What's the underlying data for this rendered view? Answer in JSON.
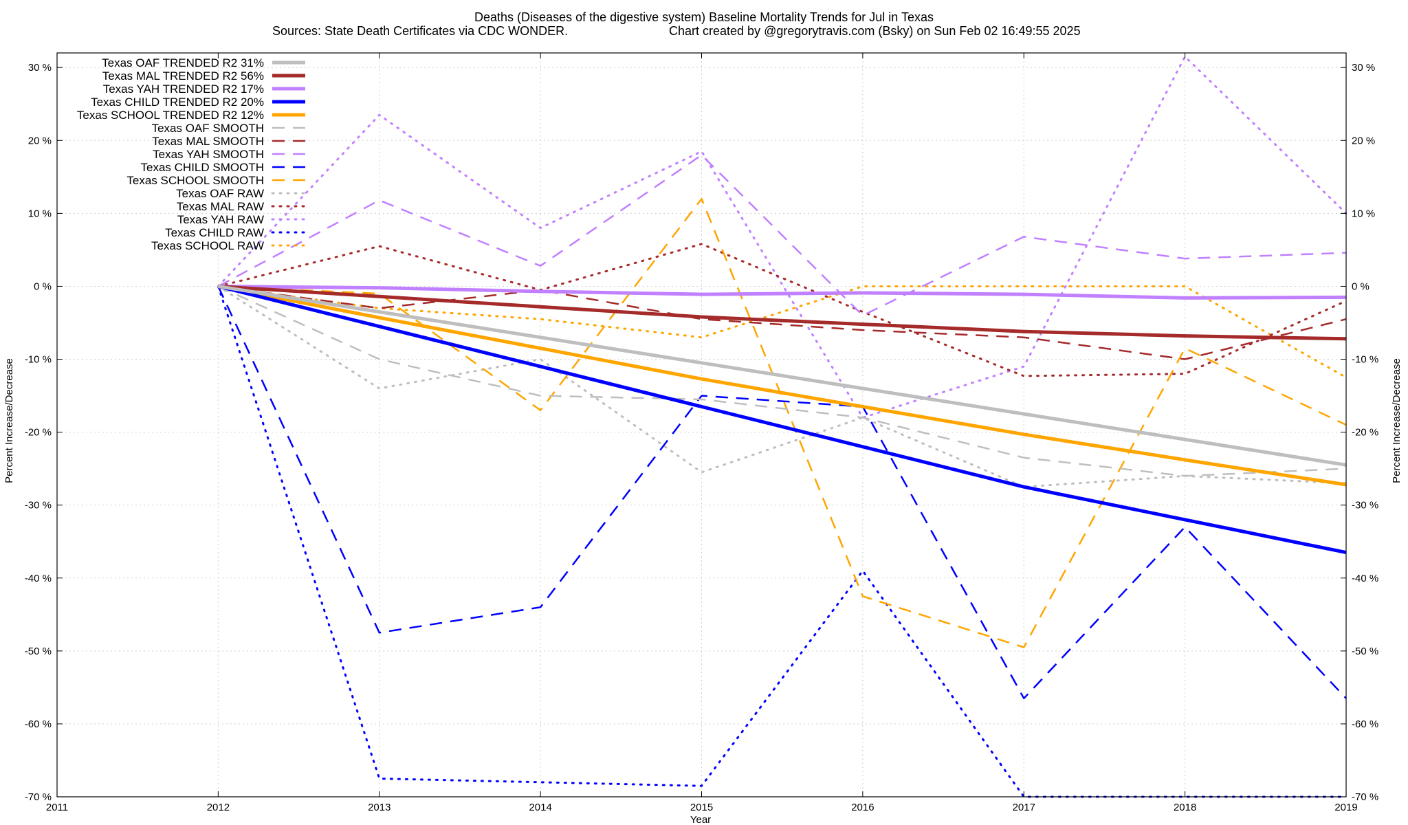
{
  "chart_data": {
    "type": "line",
    "title": "Deaths (Diseases of the digestive system)  Baseline Mortality Trends for Jul in Texas",
    "subtitle_left": "Sources: State Death Certificates via CDC WONDER.",
    "subtitle_right": "Chart created by @gregorytravis.com (Bsky) on Sun Feb 02 16:49:55 2025",
    "xlabel": "Year",
    "ylabel_left": "Percent Increase/Decrease",
    "ylabel_right": "Percent Increase/Decrease",
    "xlim": [
      2011,
      2019
    ],
    "ylim": [
      -70,
      32
    ],
    "x_ticks": [
      "2011",
      "2012",
      "2013",
      "2014",
      "2015",
      "2016",
      "2017",
      "2018",
      "2019"
    ],
    "y_ticks": [
      {
        "value": 30,
        "label": "30 %"
      },
      {
        "value": 20,
        "label": "20 %"
      },
      {
        "value": 10,
        "label": "10 %"
      },
      {
        "value": 0,
        "label": "0 %"
      },
      {
        "value": -10,
        "label": "-10 %"
      },
      {
        "value": -20,
        "label": "-20 %"
      },
      {
        "value": -30,
        "label": "-30 %"
      },
      {
        "value": -40,
        "label": "-40 %"
      },
      {
        "value": -50,
        "label": "-50 %"
      },
      {
        "value": -60,
        "label": "-60 %"
      },
      {
        "value": -70,
        "label": "-70 %"
      }
    ],
    "grid": true,
    "legend_position": "top-left",
    "x": [
      2012,
      2013,
      2014,
      2015,
      2016,
      2017,
      2018,
      2019
    ],
    "series": [
      {
        "name": "Texas OAF TRENDED R2  31%",
        "style": "trend",
        "color": "#bebebe",
        "values": [
          0,
          -3.5,
          -7,
          -10.5,
          -14,
          -17.5,
          -21,
          -24.5
        ]
      },
      {
        "name": "Texas MAL TRENDED R2  56%",
        "style": "trend",
        "color": "#a52a2a",
        "values": [
          0,
          -1.4,
          -2.8,
          -4.2,
          -5.2,
          -6.2,
          -6.8,
          -7.2
        ]
      },
      {
        "name": "Texas YAH TRENDED R2  17%",
        "style": "trend",
        "color": "#c080ff",
        "values": [
          0,
          -0.2,
          -0.7,
          -1.1,
          -0.9,
          -1.1,
          -1.6,
          -1.5
        ]
      },
      {
        "name": "Texas CHILD TRENDED R2  20%",
        "style": "trend",
        "color": "#0000ff",
        "values": [
          0,
          -5.5,
          -11,
          -16.5,
          -22,
          -27.5,
          -32,
          -36.5
        ]
      },
      {
        "name": "Texas SCHOOL TRENDED R2  12%",
        "style": "trend",
        "color": "#ffa500",
        "values": [
          0,
          -4.3,
          -8.5,
          -12.7,
          -16.5,
          -20.3,
          -23.8,
          -27.2
        ]
      },
      {
        "name": "Texas OAF SMOOTH",
        "style": "smooth",
        "color": "#bebebe",
        "values": [
          0,
          -10,
          -15,
          -15.5,
          -18,
          -23.5,
          -26,
          -25
        ]
      },
      {
        "name": "Texas MAL SMOOTH",
        "style": "smooth",
        "color": "#a52a2a",
        "values": [
          0,
          -3,
          -0.5,
          -4.5,
          -6,
          -7,
          -10,
          -4.5
        ]
      },
      {
        "name": "Texas YAH SMOOTH",
        "style": "smooth",
        "color": "#c080ff",
        "values": [
          0,
          11.8,
          2.8,
          18,
          -4,
          6.8,
          3.8,
          4.6
        ]
      },
      {
        "name": "Texas CHILD SMOOTH",
        "style": "smooth",
        "color": "#0000ff",
        "values": [
          0,
          -47.5,
          -44,
          -15,
          -16.5,
          -56.5,
          -33,
          -56.5
        ]
      },
      {
        "name": "Texas SCHOOL SMOOTH",
        "style": "smooth",
        "color": "#ffa500",
        "values": [
          0,
          -1,
          -17,
          12,
          -42.5,
          -49.5,
          -8.5,
          -19
        ]
      },
      {
        "name": "Texas OAF RAW",
        "style": "raw",
        "color": "#bebebe",
        "values": [
          0,
          -14,
          -10,
          -25.5,
          -18,
          -27.5,
          -26,
          -27
        ]
      },
      {
        "name": "Texas MAL RAW",
        "style": "raw",
        "color": "#a52a2a",
        "values": [
          0,
          5.5,
          -0.5,
          5.8,
          -3.5,
          -12.3,
          -12,
          -2
        ]
      },
      {
        "name": "Texas YAH RAW",
        "style": "raw",
        "color": "#c080ff",
        "values": [
          0,
          23.5,
          8,
          18.5,
          -18,
          -11,
          31.5,
          10
        ]
      },
      {
        "name": "Texas CHILD RAW",
        "style": "raw",
        "color": "#0000ff",
        "values": [
          0,
          -67.5,
          -68,
          -68.5,
          -39,
          -70,
          -70,
          -70
        ]
      },
      {
        "name": "Texas SCHOOL RAW",
        "style": "raw",
        "color": "#ffa500",
        "values": [
          0,
          -3,
          -4.5,
          -7,
          0,
          0,
          0,
          -12.5
        ]
      }
    ]
  }
}
